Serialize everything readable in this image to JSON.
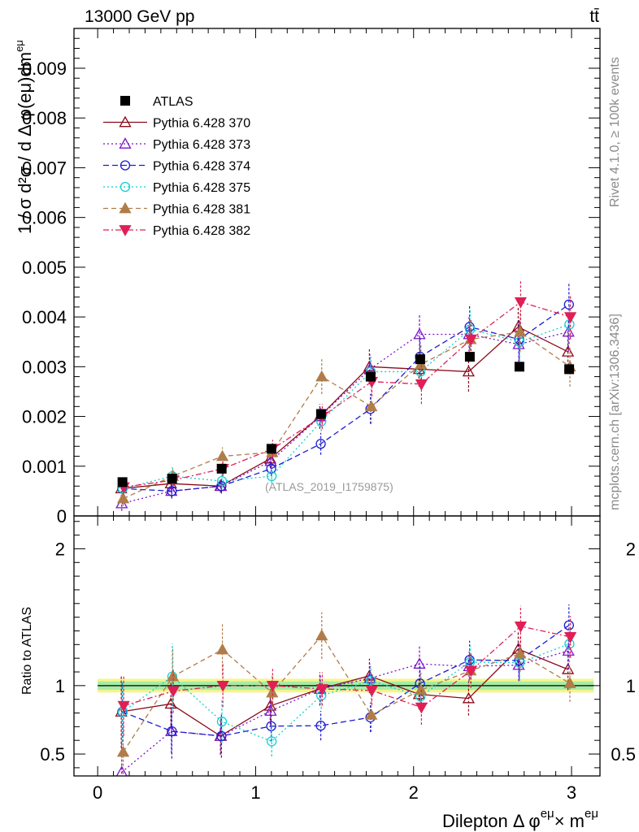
{
  "header": {
    "left": "13000 GeV pp",
    "right": "tt̄"
  },
  "side_text": {
    "top": "Rivet 4.1.0, ≥ 100k events",
    "bottom": "mcplots.cern.ch [arXiv:1306.3436]"
  },
  "chart_data": {
    "type": "scatter",
    "annotation": "(ATLAS_2019_I1759875)",
    "xlabel_main": "Dilepton Δ φ",
    "xlabel_sup1": "eμ",
    "xlabel_mid": "× m",
    "xlabel_sup2": "eμ",
    "ylabel": "1 / σ  d²σ / d Δ φ(eμ)dm",
    "ylabel_sup": "eμ",
    "ratio_ylabel": "Ratio to ATLAS",
    "xlim": [
      -0.15,
      3.18
    ],
    "ylim_main": [
      0,
      0.0098
    ],
    "ylim_ratio": [
      0.34,
      2.24
    ],
    "x_ticks": [
      "0",
      "1",
      "2",
      "3"
    ],
    "y_ticks_main": [
      "0",
      "0.001",
      "0.002",
      "0.003",
      "0.004",
      "0.005",
      "0.006",
      "0.007",
      "0.008",
      "0.009"
    ],
    "y_ticks_ratio": [
      "0.5",
      "1",
      "2"
    ],
    "x": [
      0.157,
      0.471,
      0.785,
      1.1,
      1.414,
      1.728,
      2.042,
      2.356,
      2.67,
      2.985
    ],
    "band_inner": 0.03,
    "band_outer": 0.05,
    "data": {
      "name": "ATLAS",
      "color": "#000000",
      "values": [
        0.00068,
        0.00075,
        0.00095,
        0.00135,
        0.00205,
        0.0028,
        0.00315,
        0.0032,
        0.003,
        0.00295
      ]
    },
    "series": [
      {
        "name": "Pythia 6.428 370",
        "color": "#8b0a1a",
        "marker": "tri-up-open",
        "dash": "",
        "errors": [
          0.00018,
          0.00012,
          0.00013,
          0.00018,
          0.00025,
          0.00035,
          0.00035,
          0.0004,
          0.0004,
          0.00045
        ],
        "values": [
          0.00055,
          0.00065,
          0.0006,
          0.00115,
          0.002,
          0.003,
          0.00295,
          0.0029,
          0.0038,
          0.0033
        ]
      },
      {
        "name": "Pythia 6.428 373",
        "color": "#7b12c8",
        "marker": "tri-up-open",
        "dash": "2,3",
        "errors": [
          0.00015,
          0.00012,
          0.00012,
          0.00015,
          0.0002,
          0.0003,
          0.0004,
          0.00035,
          0.00035,
          0.0004
        ],
        "values": [
          0.00025,
          0.0005,
          0.0006,
          0.0011,
          0.002,
          0.00295,
          0.00365,
          0.00365,
          0.00345,
          0.0037
        ]
      },
      {
        "name": "Pythia 6.428 374",
        "color": "#1c1cd0",
        "marker": "circle-open",
        "dash": "7,4",
        "errors": [
          0.00015,
          0.00015,
          0.00015,
          0.00015,
          0.00022,
          0.0003,
          0.0004,
          0.00045,
          0.0004,
          0.00045
        ],
        "values": [
          0.00055,
          0.0005,
          0.0006,
          0.00095,
          0.00145,
          0.00215,
          0.0032,
          0.0038,
          0.00355,
          0.00425
        ]
      },
      {
        "name": "Pythia 6.428 375",
        "color": "#10d0d0",
        "marker": "circle-open",
        "dash": "2,3",
        "errors": [
          0.00015,
          0.00018,
          0.00015,
          0.00015,
          0.0002,
          0.0003,
          0.00035,
          0.0004,
          0.0004,
          0.0004
        ],
        "values": [
          0.00055,
          0.0008,
          0.0007,
          0.0008,
          0.0019,
          0.0029,
          0.0029,
          0.00375,
          0.0035,
          0.00385
        ]
      },
      {
        "name": "Pythia 6.428 381",
        "color": "#b07d4a",
        "marker": "tri-up-filled",
        "dash": "6,4",
        "errors": [
          0.00015,
          0.00015,
          0.00018,
          0.00018,
          0.00035,
          0.00035,
          0.0004,
          0.0004,
          0.0004,
          0.0004
        ],
        "values": [
          0.00035,
          0.0008,
          0.0012,
          0.00128,
          0.0028,
          0.0022,
          0.00305,
          0.00355,
          0.0037,
          0.003
        ]
      },
      {
        "name": "Pythia 6.428 382",
        "color": "#e01f56",
        "marker": "tri-down-filled",
        "dash": "7,3,2,3",
        "errors": [
          0.00015,
          0.00012,
          0.00015,
          0.00018,
          0.00025,
          0.0003,
          0.0004,
          0.0004,
          0.00045,
          0.00045
        ],
        "values": [
          0.00058,
          0.00072,
          0.00095,
          0.00135,
          0.002,
          0.0027,
          0.00265,
          0.00355,
          0.0043,
          0.004
        ]
      }
    ]
  }
}
